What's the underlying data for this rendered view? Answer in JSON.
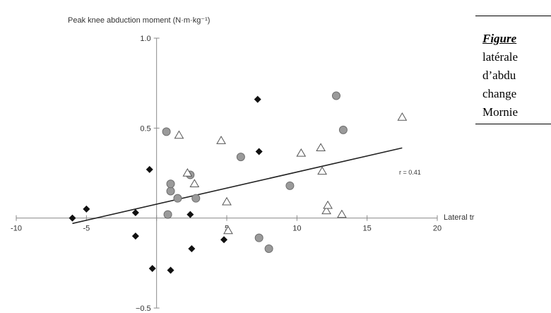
{
  "chart_data": {
    "type": "scatter",
    "ylabel": "Peak knee abduction moment (N·m·kg⁻¹)",
    "xlabel": "Lateral trunk flexion (°)",
    "xlim": [
      -10,
      20
    ],
    "ylim": [
      -0.5,
      1.0
    ],
    "xticks": [
      -10,
      -5,
      0,
      5,
      10,
      15,
      20
    ],
    "yticks": [
      -0.5,
      0.5,
      1.0
    ],
    "annotation": "r = 0.41",
    "regression": {
      "x": [
        -6,
        17.5
      ],
      "y": [
        -0.03,
        0.39
      ]
    },
    "series": [
      {
        "marker": "diamond",
        "color": "#111111",
        "points": [
          [
            -6,
            0.0
          ],
          [
            -5,
            0.05
          ],
          [
            -1.5,
            0.03
          ],
          [
            -1.5,
            -0.1
          ],
          [
            -0.5,
            0.27
          ],
          [
            -0.3,
            -0.28
          ],
          [
            1,
            -0.29
          ],
          [
            2.4,
            0.02
          ],
          [
            2.5,
            -0.17
          ],
          [
            4.8,
            -0.12
          ],
          [
            7.2,
            0.66
          ],
          [
            7.3,
            0.37
          ]
        ]
      },
      {
        "marker": "circle",
        "color": "#9a9a9a",
        "points": [
          [
            0.7,
            0.48
          ],
          [
            0.8,
            0.02
          ],
          [
            1,
            0.15
          ],
          [
            1,
            0.19
          ],
          [
            1.5,
            0.11
          ],
          [
            2.4,
            0.24
          ],
          [
            2.8,
            0.11
          ],
          [
            6,
            0.34
          ],
          [
            7.3,
            -0.11
          ],
          [
            8,
            -0.17
          ],
          [
            9.5,
            0.18
          ],
          [
            12.8,
            0.68
          ],
          [
            13.3,
            0.49
          ]
        ]
      },
      {
        "marker": "triangle",
        "color": "#ffffff",
        "points": [
          [
            1.6,
            0.46
          ],
          [
            2.2,
            0.25
          ],
          [
            2.7,
            0.19
          ],
          [
            4.6,
            0.43
          ],
          [
            5,
            0.09
          ],
          [
            5.1,
            -0.07
          ],
          [
            10.3,
            0.36
          ],
          [
            11.7,
            0.39
          ],
          [
            11.8,
            0.26
          ],
          [
            12.1,
            0.04
          ],
          [
            12.2,
            0.07
          ],
          [
            13.2,
            0.02
          ],
          [
            17.5,
            0.56
          ]
        ]
      }
    ]
  },
  "caption": {
    "label": "Figure",
    "lines": [
      "latérale",
      "d’abdu",
      "change",
      "Mornie"
    ]
  }
}
